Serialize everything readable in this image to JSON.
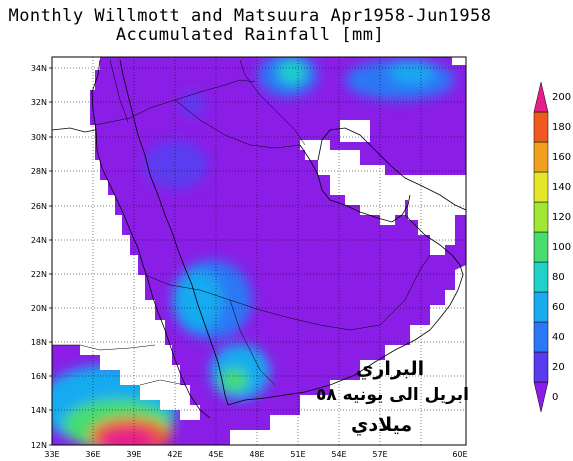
{
  "title_line1": "Monthly Willmott and Matsuura Apr1958-Jun1958",
  "title_line2": "Accumulated Rainfall [mm]",
  "lat_labels": [
    "34N",
    "32N",
    "30N",
    "28N",
    "26N",
    "24N",
    "22N",
    "20N",
    "18N",
    "16N",
    "14N",
    "12N"
  ],
  "lon_labels": [
    "33E",
    "36E",
    "39E",
    "42E",
    "45E",
    "48E",
    "51E",
    "54E",
    "57E",
    "60E"
  ],
  "colorbar": {
    "ticks": [
      "0",
      "20",
      "40",
      "60",
      "80",
      "100",
      "120",
      "140",
      "160",
      "180",
      "200"
    ],
    "colors": [
      "#8a1ee6",
      "#5a3cf0",
      "#2a78f5",
      "#19aaf0",
      "#1ed2c8",
      "#46dc6e",
      "#a0e632",
      "#e6e628",
      "#f0a01e",
      "#f05a1e",
      "#e61e8c"
    ]
  },
  "annotation": {
    "line1": "البراري",
    "line2": "ابريل الى يونيه ٥٨",
    "line3": "ميلادي"
  }
}
